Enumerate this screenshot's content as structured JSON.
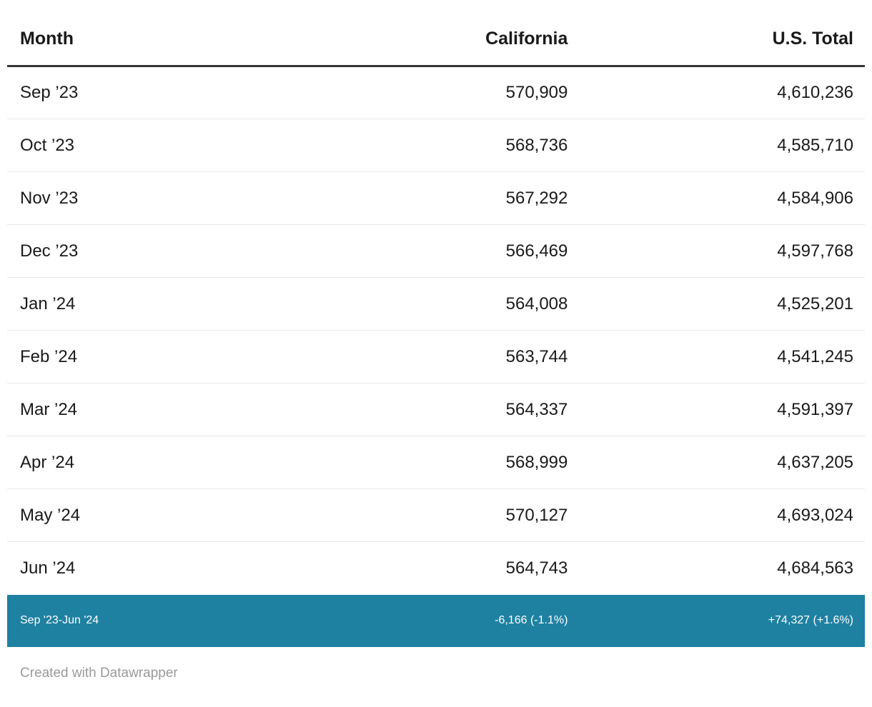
{
  "table": {
    "columns": [
      {
        "key": "month",
        "label": "Month",
        "align": "left"
      },
      {
        "key": "california",
        "label": "California",
        "align": "right"
      },
      {
        "key": "us_total",
        "label": "U.S. Total",
        "align": "right"
      }
    ],
    "rows": [
      {
        "month": "Sep ’23",
        "california": "570,909",
        "us_total": "4,610,236"
      },
      {
        "month": "Oct ’23",
        "california": "568,736",
        "us_total": "4,585,710"
      },
      {
        "month": "Nov ’23",
        "california": "567,292",
        "us_total": "4,584,906"
      },
      {
        "month": "Dec ’23",
        "california": "566,469",
        "us_total": "4,597,768"
      },
      {
        "month": "Jan ’24",
        "california": "564,008",
        "us_total": "4,525,201"
      },
      {
        "month": "Feb ’24",
        "california": "563,744",
        "us_total": "4,541,245"
      },
      {
        "month": "Mar ’24",
        "california": "564,337",
        "us_total": "4,591,397"
      },
      {
        "month": "Apr ’24",
        "california": "568,999",
        "us_total": "4,637,205"
      },
      {
        "month": "May ’24",
        "california": "570,127",
        "us_total": "4,693,024"
      },
      {
        "month": "Jun ’24",
        "california": "564,743",
        "us_total": "4,684,563"
      }
    ],
    "summary_row": {
      "month": "Sep '23-Jun '24",
      "california": "-6,166 (-1.1%)",
      "us_total": "+74,327 (+1.6%)"
    }
  },
  "footer": {
    "credit": "Created with Datawrapper"
  },
  "colors": {
    "summary_bg": "#1f81a2",
    "summary_text": "#ffffff",
    "header_border": "#333333",
    "row_divider": "#e8e8e8",
    "text": "#1a1a1a",
    "footer_text": "#9a9a9a"
  },
  "chart_data": {
    "type": "table",
    "columns": [
      "Month",
      "California",
      "U.S. Total"
    ],
    "rows": [
      [
        "Sep '23",
        570909,
        4610236
      ],
      [
        "Oct '23",
        568736,
        4585710
      ],
      [
        "Nov '23",
        567292,
        4584906
      ],
      [
        "Dec '23",
        566469,
        4597768
      ],
      [
        "Jan '24",
        564008,
        4525201
      ],
      [
        "Feb '24",
        563744,
        4541245
      ],
      [
        "Mar '24",
        564337,
        4591397
      ],
      [
        "Apr '24",
        568999,
        4637205
      ],
      [
        "May '24",
        570127,
        4693024
      ],
      [
        "Jun '24",
        564743,
        4684563
      ]
    ],
    "summary": {
      "period": "Sep '23-Jun '24",
      "california_change": -6166,
      "california_change_pct": -1.1,
      "us_total_change": 74327,
      "us_total_change_pct": 1.6
    },
    "layout_hints": {
      "summary_row_highlighted": true,
      "numeric_columns_right_aligned": true
    }
  }
}
